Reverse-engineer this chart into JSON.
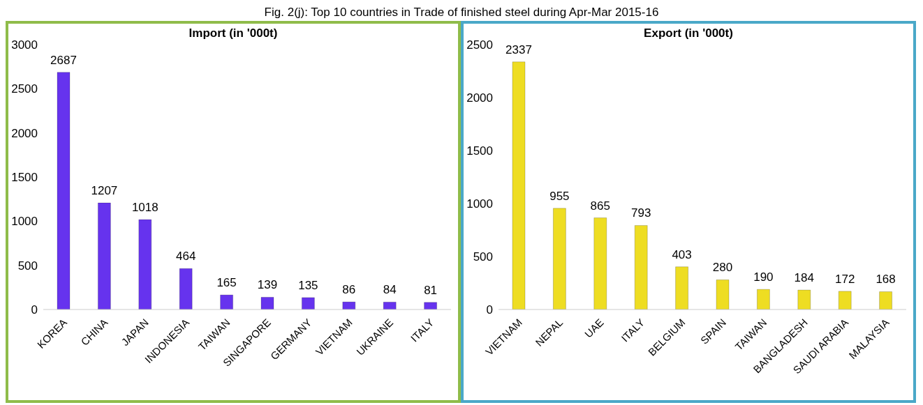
{
  "chart_data": [
    {
      "type": "bar",
      "title": "Import (in '000t)",
      "annotations": [
        "Fig. 2(j): Top 10 countries in Trade of finished steel during Apr-Mar 2015-16"
      ],
      "categories": [
        "KOREA",
        "CHINA",
        "JAPAN",
        "INDONESIA",
        "TAIWAN",
        "SINGAPORE",
        "GERMANY",
        "VIETNAM",
        "UKRAINE",
        "ITALY"
      ],
      "values": [
        2687,
        1207,
        1018,
        464,
        165,
        139,
        135,
        86,
        84,
        81
      ],
      "color": "#6633ee",
      "ylim": [
        0,
        3000
      ],
      "yticks": [
        0,
        500,
        1000,
        1500,
        2000,
        2500,
        3000
      ],
      "data_labels": true,
      "grid": false,
      "legend": false
    },
    {
      "type": "bar",
      "title": "Export (in '000t)",
      "categories": [
        "VIETNAM",
        "NEPAL",
        "UAE",
        "ITALY",
        "BELGIUM",
        "SPAIN",
        "TAIWAN",
        "BANGLADESH",
        "SAUDI ARABIA",
        "MALAYSIA"
      ],
      "values": [
        2337,
        955,
        865,
        793,
        403,
        280,
        190,
        184,
        172,
        168
      ],
      "color": "#eedd22",
      "ylim": [
        0,
        2500
      ],
      "yticks": [
        0,
        500,
        1000,
        1500,
        2000,
        2500
      ],
      "data_labels": true,
      "grid": false,
      "legend": false
    }
  ]
}
